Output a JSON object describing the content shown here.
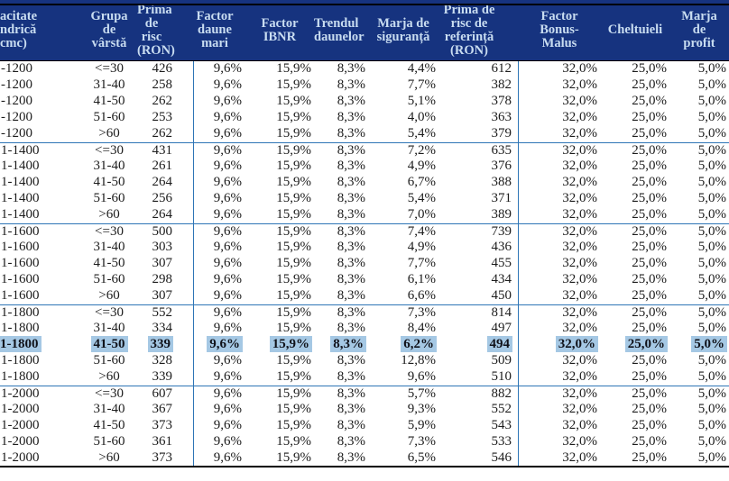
{
  "colors": {
    "header_bg": "#16337f",
    "header_fg": "#c9ddf1",
    "rule_blue": "#2e75b6",
    "rule_black": "#000000",
    "highlight": "#a5c8e4",
    "body_text": "#1c1c1c"
  },
  "header": {
    "columns": [
      {
        "id": "capacitate",
        "label": "acitate\nndrică\ncmc)"
      },
      {
        "id": "grupa-varsta",
        "label": "Grupa\nde\nvârstă"
      },
      {
        "id": "prima-risc",
        "label": "Prima\nde\nrisc\n(RON)"
      },
      {
        "id": "factor-daune-mari",
        "label": "Factor\ndaune\nmari"
      },
      {
        "id": "factor-ibnr",
        "label": "Factor\nIBNR"
      },
      {
        "id": "trendul-daunelor",
        "label": "Trendul\ndaunelor"
      },
      {
        "id": "marja-siguranta",
        "label": "Marja de\nsiguranță"
      },
      {
        "id": "prima-risc-referinta",
        "label": "Prima de\nrisc de\nreferință\n(RON)"
      },
      {
        "id": "factor-bonus-malus",
        "label": "Factor\nBonus-\nMalus"
      },
      {
        "id": "cheltuieli",
        "label": "Cheltuieli"
      },
      {
        "id": "marja-profit",
        "label": "Marja\nde\nprofit"
      }
    ]
  },
  "table": {
    "highlight_row": 17,
    "group_size": 5,
    "rows": [
      [
        "-1200",
        "<=30",
        "426",
        "9,6%",
        "15,9%",
        "8,3%",
        "4,4%",
        "612",
        "32,0%",
        "25,0%",
        "5,0%"
      ],
      [
        "-1200",
        "31-40",
        "258",
        "9,6%",
        "15,9%",
        "8,3%",
        "7,7%",
        "382",
        "32,0%",
        "25,0%",
        "5,0%"
      ],
      [
        "-1200",
        "41-50",
        "262",
        "9,6%",
        "15,9%",
        "8,3%",
        "5,1%",
        "378",
        "32,0%",
        "25,0%",
        "5,0%"
      ],
      [
        "-1200",
        "51-60",
        "253",
        "9,6%",
        "15,9%",
        "8,3%",
        "4,0%",
        "363",
        "32,0%",
        "25,0%",
        "5,0%"
      ],
      [
        "-1200",
        ">60",
        "262",
        "9,6%",
        "15,9%",
        "8,3%",
        "5,4%",
        "379",
        "32,0%",
        "25,0%",
        "5,0%"
      ],
      [
        "1-1400",
        "<=30",
        "431",
        "9,6%",
        "15,9%",
        "8,3%",
        "7,2%",
        "635",
        "32,0%",
        "25,0%",
        "5,0%"
      ],
      [
        "1-1400",
        "31-40",
        "261",
        "9,6%",
        "15,9%",
        "8,3%",
        "4,9%",
        "376",
        "32,0%",
        "25,0%",
        "5,0%"
      ],
      [
        "1-1400",
        "41-50",
        "264",
        "9,6%",
        "15,9%",
        "8,3%",
        "6,7%",
        "388",
        "32,0%",
        "25,0%",
        "5,0%"
      ],
      [
        "1-1400",
        "51-60",
        "256",
        "9,6%",
        "15,9%",
        "8,3%",
        "5,4%",
        "371",
        "32,0%",
        "25,0%",
        "5,0%"
      ],
      [
        "1-1400",
        ">60",
        "264",
        "9,6%",
        "15,9%",
        "8,3%",
        "7,0%",
        "389",
        "32,0%",
        "25,0%",
        "5,0%"
      ],
      [
        "1-1600",
        "<=30",
        "500",
        "9,6%",
        "15,9%",
        "8,3%",
        "7,4%",
        "739",
        "32,0%",
        "25,0%",
        "5,0%"
      ],
      [
        "1-1600",
        "31-40",
        "303",
        "9,6%",
        "15,9%",
        "8,3%",
        "4,9%",
        "436",
        "32,0%",
        "25,0%",
        "5,0%"
      ],
      [
        "1-1600",
        "41-50",
        "307",
        "9,6%",
        "15,9%",
        "8,3%",
        "7,7%",
        "455",
        "32,0%",
        "25,0%",
        "5,0%"
      ],
      [
        "1-1600",
        "51-60",
        "298",
        "9,6%",
        "15,9%",
        "8,3%",
        "6,1%",
        "434",
        "32,0%",
        "25,0%",
        "5,0%"
      ],
      [
        "1-1600",
        ">60",
        "307",
        "9,6%",
        "15,9%",
        "8,3%",
        "6,6%",
        "450",
        "32,0%",
        "25,0%",
        "5,0%"
      ],
      [
        "1-1800",
        "<=30",
        "552",
        "9,6%",
        "15,9%",
        "8,3%",
        "7,3%",
        "814",
        "32,0%",
        "25,0%",
        "5,0%"
      ],
      [
        "1-1800",
        "31-40",
        "334",
        "9,6%",
        "15,9%",
        "8,3%",
        "8,4%",
        "497",
        "32,0%",
        "25,0%",
        "5,0%"
      ],
      [
        "1-1800",
        "41-50",
        "339",
        "9,6%",
        "15,9%",
        "8,3%",
        "6,2%",
        "494",
        "32,0%",
        "25,0%",
        "5,0%"
      ],
      [
        "1-1800",
        "51-60",
        "328",
        "9,6%",
        "15,9%",
        "8,3%",
        "12,8%",
        "509",
        "32,0%",
        "25,0%",
        "5,0%"
      ],
      [
        "1-1800",
        ">60",
        "339",
        "9,6%",
        "15,9%",
        "8,3%",
        "9,6%",
        "510",
        "32,0%",
        "25,0%",
        "5,0%"
      ],
      [
        "1-2000",
        "<=30",
        "607",
        "9,6%",
        "15,9%",
        "8,3%",
        "5,7%",
        "882",
        "32,0%",
        "25,0%",
        "5,0%"
      ],
      [
        "1-2000",
        "31-40",
        "367",
        "9,6%",
        "15,9%",
        "8,3%",
        "9,3%",
        "552",
        "32,0%",
        "25,0%",
        "5,0%"
      ],
      [
        "1-2000",
        "41-50",
        "373",
        "9,6%",
        "15,9%",
        "8,3%",
        "5,9%",
        "543",
        "32,0%",
        "25,0%",
        "5,0%"
      ],
      [
        "1-2000",
        "51-60",
        "361",
        "9,6%",
        "15,9%",
        "8,3%",
        "7,3%",
        "533",
        "32,0%",
        "25,0%",
        "5,0%"
      ],
      [
        "1-2000",
        ">60",
        "373",
        "9,6%",
        "15,9%",
        "8,3%",
        "6,5%",
        "546",
        "32,0%",
        "25,0%",
        "5,0%"
      ]
    ]
  }
}
